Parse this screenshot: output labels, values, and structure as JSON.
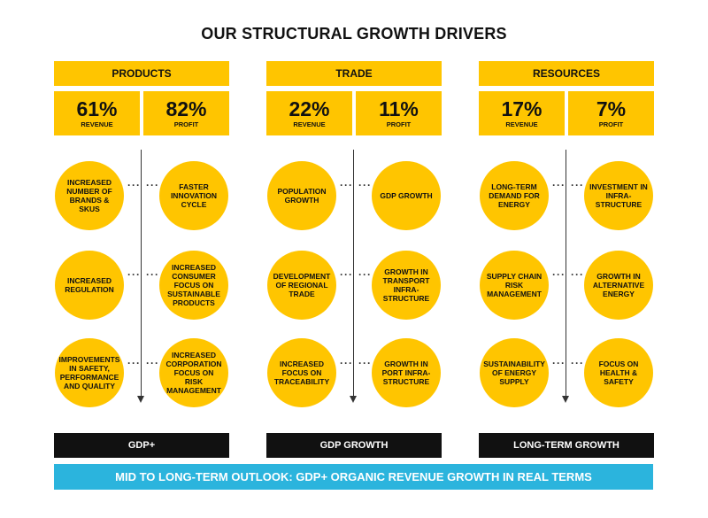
{
  "title": "OUR STRUCTURAL GROWTH DRIVERS",
  "colors": {
    "yellow": "#ffc500",
    "black": "#111111",
    "blue": "#2bb4dd"
  },
  "columns": [
    {
      "name": "PRODUCTS",
      "revenue": "61%",
      "revenue_label": "REVENUE",
      "profit": "82%",
      "profit_label": "PROFIT",
      "drivers": [
        {
          "left": "INCREASED NUMBER OF BRANDS & SKUs",
          "right": "FASTER INNOVATION CYCLE"
        },
        {
          "left": "INCREASED REGULATION",
          "right": "INCREASED CONSUMER FOCUS ON SUSTAINABLE PRODUCTS"
        },
        {
          "left": "IMPROVEMENTS IN SAFETY, PERFORMANCE AND QUALITY",
          "right": "INCREASED CORPORATION FOCUS ON RISK MANAGEMENT"
        }
      ],
      "footer": "GDP+"
    },
    {
      "name": "TRADE",
      "revenue": "22%",
      "revenue_label": "REVENUE",
      "profit": "11%",
      "profit_label": "PROFIT",
      "drivers": [
        {
          "left": "POPULATION GROWTH",
          "right": "GDP GROWTH"
        },
        {
          "left": "DEVELOPMENT OF REGIONAL TRADE",
          "right": "GROWTH IN TRANSPORT INFRA-STRUCTURE"
        },
        {
          "left": "INCREASED FOCUS ON TRACEABILITY",
          "right": "GROWTH IN PORT INFRA-STRUCTURE"
        }
      ],
      "footer": "GDP GROWTH"
    },
    {
      "name": "RESOURCES",
      "revenue": "17%",
      "revenue_label": "REVENUE",
      "profit": "7%",
      "profit_label": "PROFIT",
      "drivers": [
        {
          "left": "LONG-TERM DEMAND FOR ENERGY",
          "right": "INVESTMENT IN INFRA-STRUCTURE"
        },
        {
          "left": "SUPPLY CHAIN RISK MANAGEMENT",
          "right": "GROWTH IN ALTERNATIVE ENERGY"
        },
        {
          "left": "SUSTAINABILITY OF ENERGY SUPPLY",
          "right": "FOCUS ON HEALTH & SAFETY"
        }
      ],
      "footer": "LONG-TERM GROWTH"
    }
  ],
  "outlook": "MID TO LONG-TERM OUTLOOK: GDP+ ORGANIC REVENUE GROWTH IN REAL TERMS"
}
